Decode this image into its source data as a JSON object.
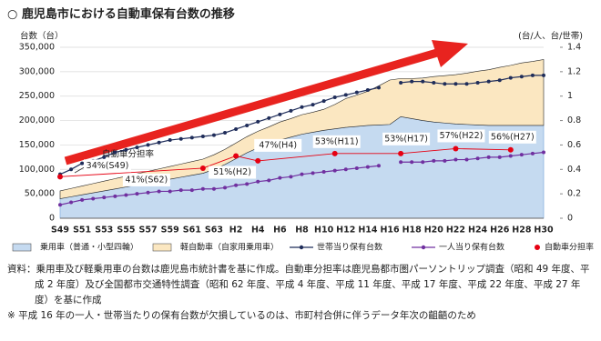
{
  "chart_data": {
    "type": "area",
    "stacked": true,
    "title": "○ 鹿児島市における自動車保有台数の推移",
    "y_label": "台数（台）",
    "y2_label": "(台/人、台/世帯)",
    "annotation": "自動車分担率",
    "categories": [
      "S49",
      null,
      "S51",
      null,
      "S53",
      null,
      "S55",
      null,
      "S57",
      null,
      "S59",
      null,
      "S61",
      null,
      "S63",
      null,
      "H2",
      null,
      "H4",
      null,
      "H6",
      null,
      "H8",
      null,
      "H10",
      null,
      "H12",
      null,
      "H14",
      null,
      "H16",
      null,
      "H18",
      null,
      "H20",
      null,
      "H22",
      null,
      "H24",
      null,
      "H26",
      null,
      "H28",
      null,
      "H30"
    ],
    "ylim": [
      0,
      350000
    ],
    "yticks": [
      0,
      {
        "value": 50000,
        "label": "50,000"
      },
      {
        "value": 100000,
        "label": "100,000"
      },
      {
        "value": 150000,
        "label": "150,000"
      },
      {
        "value": 200000,
        "label": "200,000"
      },
      {
        "value": 250000,
        "label": "250,000"
      },
      {
        "value": 300000,
        "label": "300,000"
      },
      {
        "value": 350000,
        "label": "350,000"
      }
    ],
    "y2lim": [
      0,
      1.4
    ],
    "y2ticks": [
      0,
      0.2,
      0.4,
      0.6,
      0.8,
      1,
      1.2,
      1.4
    ],
    "grid": true,
    "series": [
      {
        "name": "乗用車（普通・小型四輪）",
        "type": "area",
        "color": "#c5daf0",
        "values": [
          40000,
          44000,
          48000,
          52000,
          56000,
          60000,
          64000,
          68000,
          72000,
          76000,
          80000,
          84000,
          88000,
          92000,
          100000,
          110000,
          122000,
          134000,
          144000,
          152000,
          160000,
          166000,
          172000,
          176000,
          180000,
          183000,
          186000,
          188000,
          190000,
          191000,
          192000,
          208000,
          204000,
          200000,
          197000,
          195000,
          193000,
          192000,
          191000,
          190000,
          190000,
          190000,
          190000,
          190000,
          190000
        ]
      },
      {
        "name": "軽自動車（自家用乗用車）",
        "type": "area",
        "color": "#fbe7c1",
        "values": [
          16000,
          17000,
          18000,
          19000,
          20000,
          21000,
          22000,
          23000,
          24000,
          25000,
          26000,
          27000,
          28000,
          29000,
          30000,
          31000,
          32000,
          33000,
          34000,
          35000,
          37000,
          38000,
          40000,
          41000,
          43000,
          50000,
          59000,
          64000,
          70000,
          80000,
          91000,
          78000,
          82000,
          87000,
          93000,
          97000,
          101000,
          105000,
          110000,
          114000,
          119000,
          123000,
          128000,
          131000,
          135000
        ]
      },
      {
        "name": "世帯当り保有台数",
        "type": "line",
        "axis": "y2",
        "color": "#1f2d5a",
        "values": [
          0.36,
          0.4,
          0.45,
          0.47,
          0.5,
          0.54,
          0.56,
          0.58,
          0.6,
          0.62,
          0.64,
          0.65,
          0.66,
          0.67,
          0.68,
          0.7,
          0.73,
          0.76,
          0.79,
          0.82,
          0.85,
          0.88,
          0.91,
          0.93,
          0.96,
          0.99,
          1.01,
          1.03,
          1.05,
          1.07,
          null,
          1.11,
          1.12,
          1.12,
          1.11,
          1.1,
          1.1,
          1.1,
          1.11,
          1.12,
          1.13,
          1.15,
          1.16,
          1.17,
          1.17
        ]
      },
      {
        "name": "一人当り保有台数",
        "type": "line",
        "axis": "y2",
        "color": "#7030a0",
        "values": [
          0.11,
          0.13,
          0.15,
          0.16,
          0.17,
          0.18,
          0.19,
          0.2,
          0.21,
          0.22,
          0.22,
          0.23,
          0.23,
          0.24,
          0.24,
          0.25,
          0.27,
          0.28,
          0.3,
          0.31,
          0.33,
          0.34,
          0.36,
          0.37,
          0.38,
          0.39,
          0.4,
          0.41,
          0.42,
          0.43,
          null,
          0.46,
          0.46,
          0.46,
          0.47,
          0.47,
          0.48,
          0.48,
          0.49,
          0.5,
          0.5,
          0.51,
          0.52,
          0.53,
          0.54
        ]
      },
      {
        "name": "自動車分担率",
        "type": "scatter",
        "axis": "y2",
        "color": "#e60012",
        "values": [
          0.34,
          null,
          null,
          null,
          null,
          null,
          null,
          null,
          null,
          null,
          null,
          null,
          null,
          0.41,
          null,
          null,
          0.51,
          null,
          0.47,
          null,
          null,
          null,
          null,
          null,
          null,
          0.53,
          null,
          null,
          null,
          null,
          null,
          0.53,
          null,
          null,
          null,
          null,
          0.57,
          null,
          null,
          null,
          null,
          0.56,
          null,
          null,
          null
        ],
        "value_labels": [
          "34%(S49)",
          null,
          null,
          null,
          null,
          null,
          null,
          null,
          null,
          null,
          null,
          null,
          null,
          "41%(S62)",
          null,
          null,
          "51%(H2)",
          null,
          "47%(H4)",
          null,
          null,
          null,
          null,
          null,
          null,
          "53%(H11)",
          null,
          null,
          null,
          null,
          null,
          "53%(H17)",
          null,
          null,
          null,
          null,
          "57%(H22)",
          null,
          null,
          null,
          null,
          "56%(H27)",
          null,
          null,
          null
        ]
      }
    ]
  },
  "notes": [
    "資料：乗用車及び軽乗用車の台数は鹿児島市統計書を基に作成。自動車分担率は鹿児島都市圏パーソントリップ調査（昭和 49 年度、平成 2 年度）及び全国都市交通特性調査（昭和 62 年度、平成 4 年度、平成 11 年度、平成 17 年度、平成 22 年度、平成 27 年度）を基に作成",
    "※ 平成 16 年の一人・世帯当たりの保有台数が欠損しているのは、市町村合併に伴うデータ年次の齟齬のため"
  ]
}
